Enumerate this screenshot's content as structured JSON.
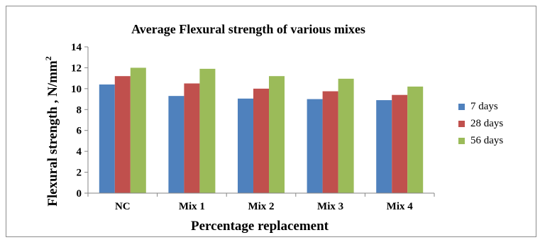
{
  "chart_data": {
    "type": "bar",
    "title": "Average Flexural strength of various mixes",
    "xlabel": "Percentage replacement",
    "ylabel": "Flexural  strength , N/mm",
    "ylabel_superscript": "2",
    "categories": [
      "NC",
      "Mix 1",
      "Mix 2",
      "Mix 3",
      "Mix 4"
    ],
    "series": [
      {
        "name": "7 days",
        "color": "#4f81bd",
        "values": [
          10.4,
          9.3,
          9.05,
          9.0,
          8.9
        ]
      },
      {
        "name": "28 days",
        "color": "#c0504d",
        "values": [
          11.2,
          10.5,
          10.0,
          9.75,
          9.4
        ]
      },
      {
        "name": "56 days",
        "color": "#9bbb59",
        "values": [
          12.0,
          11.9,
          11.2,
          10.95,
          10.2
        ]
      }
    ],
    "ylim": [
      0,
      14
    ],
    "yticks": [
      0,
      2,
      4,
      6,
      8,
      10,
      12,
      14
    ],
    "grid": false,
    "legend_position": "right"
  }
}
